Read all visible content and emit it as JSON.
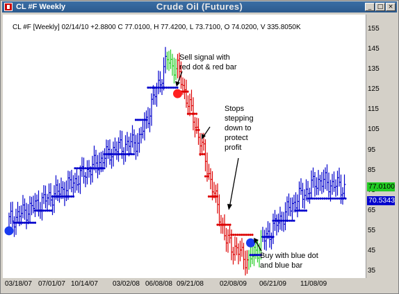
{
  "window": {
    "left_title": "CL #F Weekly",
    "center_title": "Crude Oil (Futures)",
    "buttons": [
      "_",
      "□",
      "×"
    ]
  },
  "header": {
    "ticker_line": "CL #F [Weekly] 02/14/10 +2.8800 C 77.0100, H 77.4200, L 73.7100, O 74.0200, V 335.8050K"
  },
  "chart_data": {
    "type": "line",
    "title": "Crude Oil (Futures)",
    "xlabel": "",
    "ylabel": "",
    "ylim": [
      30,
      160
    ],
    "yticks": [
      35,
      45,
      55,
      65,
      75,
      85,
      95,
      105,
      115,
      125,
      135,
      145,
      155
    ],
    "x_tick_labels": [
      "03/18/07",
      "07/01/07",
      "10/14/07",
      "03/02/08",
      "06/08/08",
      "09/21/08",
      "02/08/09",
      "06/21/09",
      "11/08/09"
    ],
    "price_tags": [
      {
        "label": "77.0100",
        "value": 77.01,
        "bg": "#22cc22",
        "color": "#000000"
      },
      {
        "label": "70.5343",
        "value": 70.5343,
        "bg": "#0000cc",
        "color": "#ffffff"
      }
    ],
    "colors": {
      "up": "#0000cc",
      "down": "#dd0000",
      "neutral": "#22cc22"
    },
    "segments": [
      {
        "color": "blue",
        "from": [
          0,
          60
        ],
        "to": [
          34,
          77
        ]
      },
      {
        "color": "blue",
        "from": [
          34,
          77
        ],
        "to": [
          60,
          95
        ]
      },
      {
        "color": "blue",
        "from": [
          60,
          95
        ],
        "to": [
          75,
          100
        ]
      },
      {
        "color": "blue",
        "from": [
          75,
          100
        ],
        "to": [
          91,
          140
        ]
      },
      {
        "color": "green",
        "from": [
          91,
          140
        ],
        "to": [
          97,
          135
        ]
      },
      {
        "color": "red",
        "from": [
          97,
          135
        ],
        "to": [
          110,
          100
        ]
      },
      {
        "color": "red",
        "from": [
          110,
          100
        ],
        "to": [
          125,
          50
        ]
      },
      {
        "color": "red",
        "from": [
          125,
          50
        ],
        "to": [
          138,
          40
        ]
      },
      {
        "color": "green",
        "from": [
          138,
          40
        ],
        "to": [
          146,
          50
        ]
      },
      {
        "color": "blue",
        "from": [
          146,
          50
        ],
        "to": [
          165,
          70
        ]
      },
      {
        "color": "blue",
        "from": [
          165,
          70
        ],
        "to": [
          178,
          80
        ]
      },
      {
        "color": "blue",
        "from": [
          178,
          80
        ],
        "to": [
          194,
          76
        ]
      }
    ],
    "stops_blue": [
      {
        "from": 3,
        "to": 15,
        "value": 59
      },
      {
        "from": 15,
        "to": 25,
        "value": 65
      },
      {
        "from": 25,
        "to": 38,
        "value": 72
      },
      {
        "from": 38,
        "to": 55,
        "value": 86
      },
      {
        "from": 55,
        "to": 73,
        "value": 93
      },
      {
        "from": 73,
        "to": 80,
        "value": 110
      },
      {
        "from": 80,
        "to": 97,
        "value": 126
      },
      {
        "from": 139,
        "to": 146,
        "value": 43
      },
      {
        "from": 146,
        "to": 152,
        "value": 52
      },
      {
        "from": 152,
        "to": 165,
        "value": 60
      },
      {
        "from": 165,
        "to": 172,
        "value": 65
      },
      {
        "from": 172,
        "to": 194,
        "value": 71
      }
    ],
    "stops_red": [
      {
        "from": 98,
        "to": 103,
        "value": 124
      },
      {
        "from": 103,
        "to": 108,
        "value": 113
      },
      {
        "from": 108,
        "to": 110,
        "value": 105
      },
      {
        "from": 110,
        "to": 113,
        "value": 93
      },
      {
        "from": 113,
        "to": 115,
        "value": 82
      },
      {
        "from": 115,
        "to": 120,
        "value": 72
      },
      {
        "from": 120,
        "to": 128,
        "value": 58
      },
      {
        "from": 128,
        "to": 140,
        "value": 53
      }
    ],
    "signal_dots": [
      {
        "x": 0,
        "value": 55,
        "color": "blue"
      },
      {
        "x": 97,
        "value": 123,
        "color": "red"
      },
      {
        "x": 139,
        "value": 49,
        "color": "blue"
      }
    ],
    "annotations": [
      {
        "text": "Sell signal with\nred dot & red bar"
      },
      {
        "text": "Stops\nstepping\ndown to\nprotect\nprofit"
      },
      {
        "text": "Buy with blue dot\nand blue bar"
      }
    ]
  }
}
